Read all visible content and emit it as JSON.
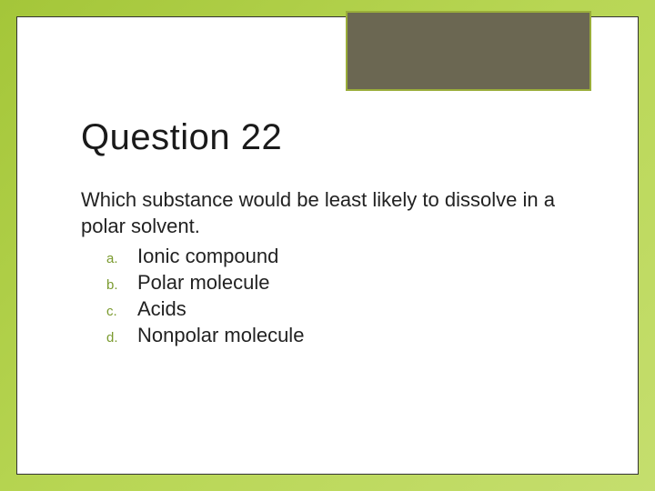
{
  "slide": {
    "background_gradient": [
      "#a4c639",
      "#b8d654",
      "#c5de6e"
    ],
    "inner_bg": "#ffffff",
    "inner_border": "#333333",
    "corner_box_bg": "#6b6752",
    "corner_box_border": "#9aad3a",
    "title": "Question 22",
    "title_color": "#1a1a1a",
    "title_fontsize": 40,
    "question_text": "Which substance would be least likely to dissolve in a polar solvent.",
    "question_fontsize": 22,
    "question_color": "#222222",
    "option_label_color": "#7a9a2e",
    "option_label_fontsize": 15,
    "option_text_fontsize": 22,
    "options": [
      {
        "label": "a.",
        "text": "Ionic compound"
      },
      {
        "label": "b.",
        "text": "Polar molecule"
      },
      {
        "label": "c.",
        "text": "Acids"
      },
      {
        "label": "d.",
        "text": "Nonpolar molecule"
      }
    ]
  }
}
